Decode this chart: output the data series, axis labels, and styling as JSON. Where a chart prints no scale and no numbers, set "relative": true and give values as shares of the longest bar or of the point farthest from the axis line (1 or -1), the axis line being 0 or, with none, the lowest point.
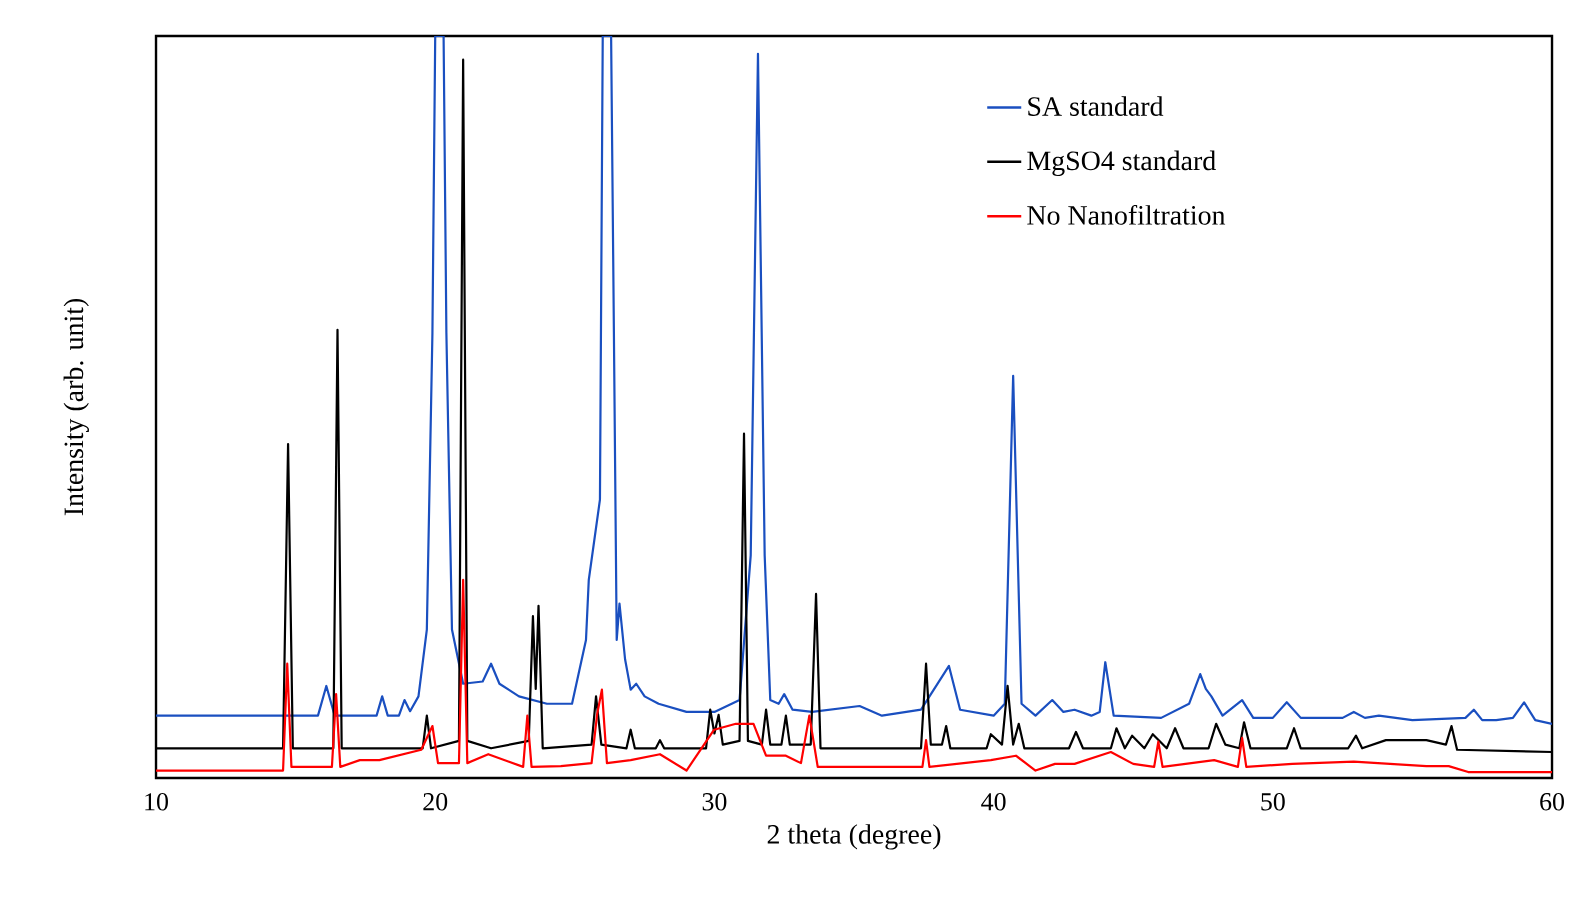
{
  "chart_data": {
    "type": "line",
    "xlabel": "2 theta (degree)",
    "ylabel": "Intensity (arb. unit)",
    "relative": true,
    "xlim": [
      10,
      60
    ],
    "xticks": [
      10,
      20,
      30,
      40,
      50,
      60
    ],
    "legend": "top right",
    "grid": false,
    "marker": "none",
    "line_style": "solid",
    "series": [
      {
        "name": "SA standard",
        "color": "#1a4fc0",
        "x": [
          10,
          15.8,
          16.1,
          16.4,
          17.9,
          18.1,
          18.3,
          18.7,
          18.9,
          19.1,
          19.4,
          19.7,
          19.9,
          20.0,
          20.3,
          20.4,
          20.6,
          21.0,
          21.7,
          22.0,
          22.3,
          23.0,
          24.0,
          24.9,
          25.4,
          25.5,
          25.9,
          26.0,
          26.3,
          26.4,
          26.5,
          26.6,
          26.8,
          27.0,
          27.2,
          27.5,
          28,
          29,
          30,
          30.9,
          31.3,
          31.56,
          31.8,
          32.0,
          32.3,
          32.5,
          32.8,
          33.5,
          35.2,
          36,
          37.4,
          38.4,
          38.8,
          40,
          40.4,
          40.7,
          41.0,
          41.5,
          42.1,
          42.5,
          42.9,
          43.5,
          43.8,
          44.0,
          44.3,
          46,
          47.0,
          47.4,
          47.6,
          47.8,
          48.2,
          48.9,
          49.3,
          50.0,
          50.5,
          51.0,
          52.5,
          52.9,
          53.3,
          53.8,
          55,
          56.9,
          57.2,
          57.5,
          58,
          58.6,
          59.0,
          59.4,
          60
        ],
        "values": [
          0.084,
          0.084,
          0.124,
          0.084,
          0.084,
          0.11,
          0.084,
          0.084,
          0.105,
          0.09,
          0.11,
          0.2,
          0.6,
          1.0,
          1.0,
          0.6,
          0.2,
          0.127,
          0.13,
          0.154,
          0.127,
          0.11,
          0.1,
          0.1,
          0.186,
          0.267,
          0.375,
          1.0,
          1.0,
          0.6,
          0.186,
          0.235,
          0.16,
          0.119,
          0.127,
          0.11,
          0.1,
          0.089,
          0.089,
          0.105,
          0.3,
          0.976,
          0.3,
          0.105,
          0.1,
          0.113,
          0.092,
          0.089,
          0.097,
          0.084,
          0.092,
          0.151,
          0.092,
          0.084,
          0.1,
          0.542,
          0.1,
          0.084,
          0.105,
          0.089,
          0.092,
          0.084,
          0.089,
          0.156,
          0.084,
          0.081,
          0.1,
          0.14,
          0.12,
          0.11,
          0.084,
          0.105,
          0.081,
          0.081,
          0.102,
          0.081,
          0.081,
          0.089,
          0.081,
          0.084,
          0.078,
          0.081,
          0.092,
          0.078,
          0.078,
          0.081,
          0.102,
          0.078,
          0.073
        ]
      },
      {
        "name": "MgSO4 standard",
        "color": "#000000",
        "x": [
          10,
          14.55,
          14.73,
          14.9,
          16.35,
          16.5,
          16.65,
          19.55,
          19.7,
          19.85,
          20.85,
          21.0,
          21.15,
          22,
          23.35,
          23.5,
          23.6,
          23.7,
          23.85,
          25.6,
          25.76,
          25.95,
          26.85,
          27.0,
          27.15,
          27.9,
          28.05,
          28.2,
          29.7,
          29.85,
          30.0,
          30.15,
          30.3,
          30.9,
          31.06,
          31.2,
          31.7,
          31.85,
          32.0,
          32.4,
          32.56,
          32.7,
          33.45,
          33.64,
          33.8,
          37.4,
          37.58,
          37.75,
          38.15,
          38.3,
          38.45,
          39.75,
          39.9,
          40.3,
          40.5,
          40.7,
          40.9,
          41.1,
          42.7,
          42.95,
          43.2,
          44.2,
          44.4,
          44.7,
          44.96,
          45.4,
          45.7,
          46.2,
          46.5,
          46.8,
          47.7,
          47.97,
          48.3,
          48.8,
          48.97,
          49.2,
          50.5,
          50.76,
          51.0,
          52.7,
          52.98,
          53.2,
          54.05,
          55.5,
          56.2,
          56.4,
          56.6,
          60
        ],
        "values": [
          0.04,
          0.04,
          0.45,
          0.04,
          0.04,
          0.604,
          0.04,
          0.04,
          0.084,
          0.04,
          0.05,
          0.968,
          0.05,
          0.04,
          0.05,
          0.218,
          0.12,
          0.232,
          0.04,
          0.045,
          0.11,
          0.045,
          0.04,
          0.065,
          0.04,
          0.04,
          0.051,
          0.04,
          0.04,
          0.092,
          0.06,
          0.085,
          0.045,
          0.05,
          0.464,
          0.05,
          0.045,
          0.092,
          0.045,
          0.045,
          0.084,
          0.045,
          0.045,
          0.248,
          0.04,
          0.04,
          0.154,
          0.045,
          0.045,
          0.07,
          0.04,
          0.04,
          0.059,
          0.045,
          0.124,
          0.045,
          0.073,
          0.04,
          0.04,
          0.062,
          0.04,
          0.04,
          0.067,
          0.04,
          0.057,
          0.04,
          0.059,
          0.04,
          0.067,
          0.04,
          0.04,
          0.073,
          0.045,
          0.04,
          0.075,
          0.04,
          0.04,
          0.067,
          0.04,
          0.04,
          0.057,
          0.04,
          0.051,
          0.051,
          0.045,
          0.07,
          0.038,
          0.035
        ]
      },
      {
        "name": "No Nanofiltration",
        "color": "#ff0000",
        "x": [
          10,
          14.55,
          14.7,
          14.85,
          16.3,
          16.45,
          16.6,
          17.3,
          18.0,
          19.5,
          19.9,
          20.1,
          20.85,
          21.0,
          21.15,
          21.9,
          23.15,
          23.3,
          23.45,
          24.5,
          25.6,
          25.8,
          25.97,
          26.15,
          27.0,
          28.05,
          29,
          29.99,
          30.77,
          31.4,
          31.85,
          32.56,
          33.1,
          33.4,
          33.7,
          35,
          37.45,
          37.58,
          37.7,
          39.9,
          40.8,
          41.5,
          42.2,
          42.9,
          44.2,
          45.0,
          45.75,
          45.9,
          46.05,
          47.9,
          48.75,
          48.9,
          49.05,
          50.7,
          52.9,
          55.5,
          56.3,
          57,
          60
        ],
        "values": [
          0.01,
          0.01,
          0.154,
          0.015,
          0.015,
          0.113,
          0.015,
          0.024,
          0.024,
          0.038,
          0.07,
          0.02,
          0.02,
          0.267,
          0.02,
          0.032,
          0.015,
          0.084,
          0.015,
          0.016,
          0.02,
          0.086,
          0.119,
          0.02,
          0.024,
          0.032,
          0.01,
          0.065,
          0.073,
          0.073,
          0.03,
          0.03,
          0.02,
          0.084,
          0.015,
          0.015,
          0.015,
          0.051,
          0.015,
          0.024,
          0.03,
          0.01,
          0.019,
          0.019,
          0.035,
          0.019,
          0.015,
          0.049,
          0.015,
          0.024,
          0.015,
          0.054,
          0.015,
          0.019,
          0.022,
          0.016,
          0.016,
          0.008,
          0.008
        ]
      }
    ]
  }
}
